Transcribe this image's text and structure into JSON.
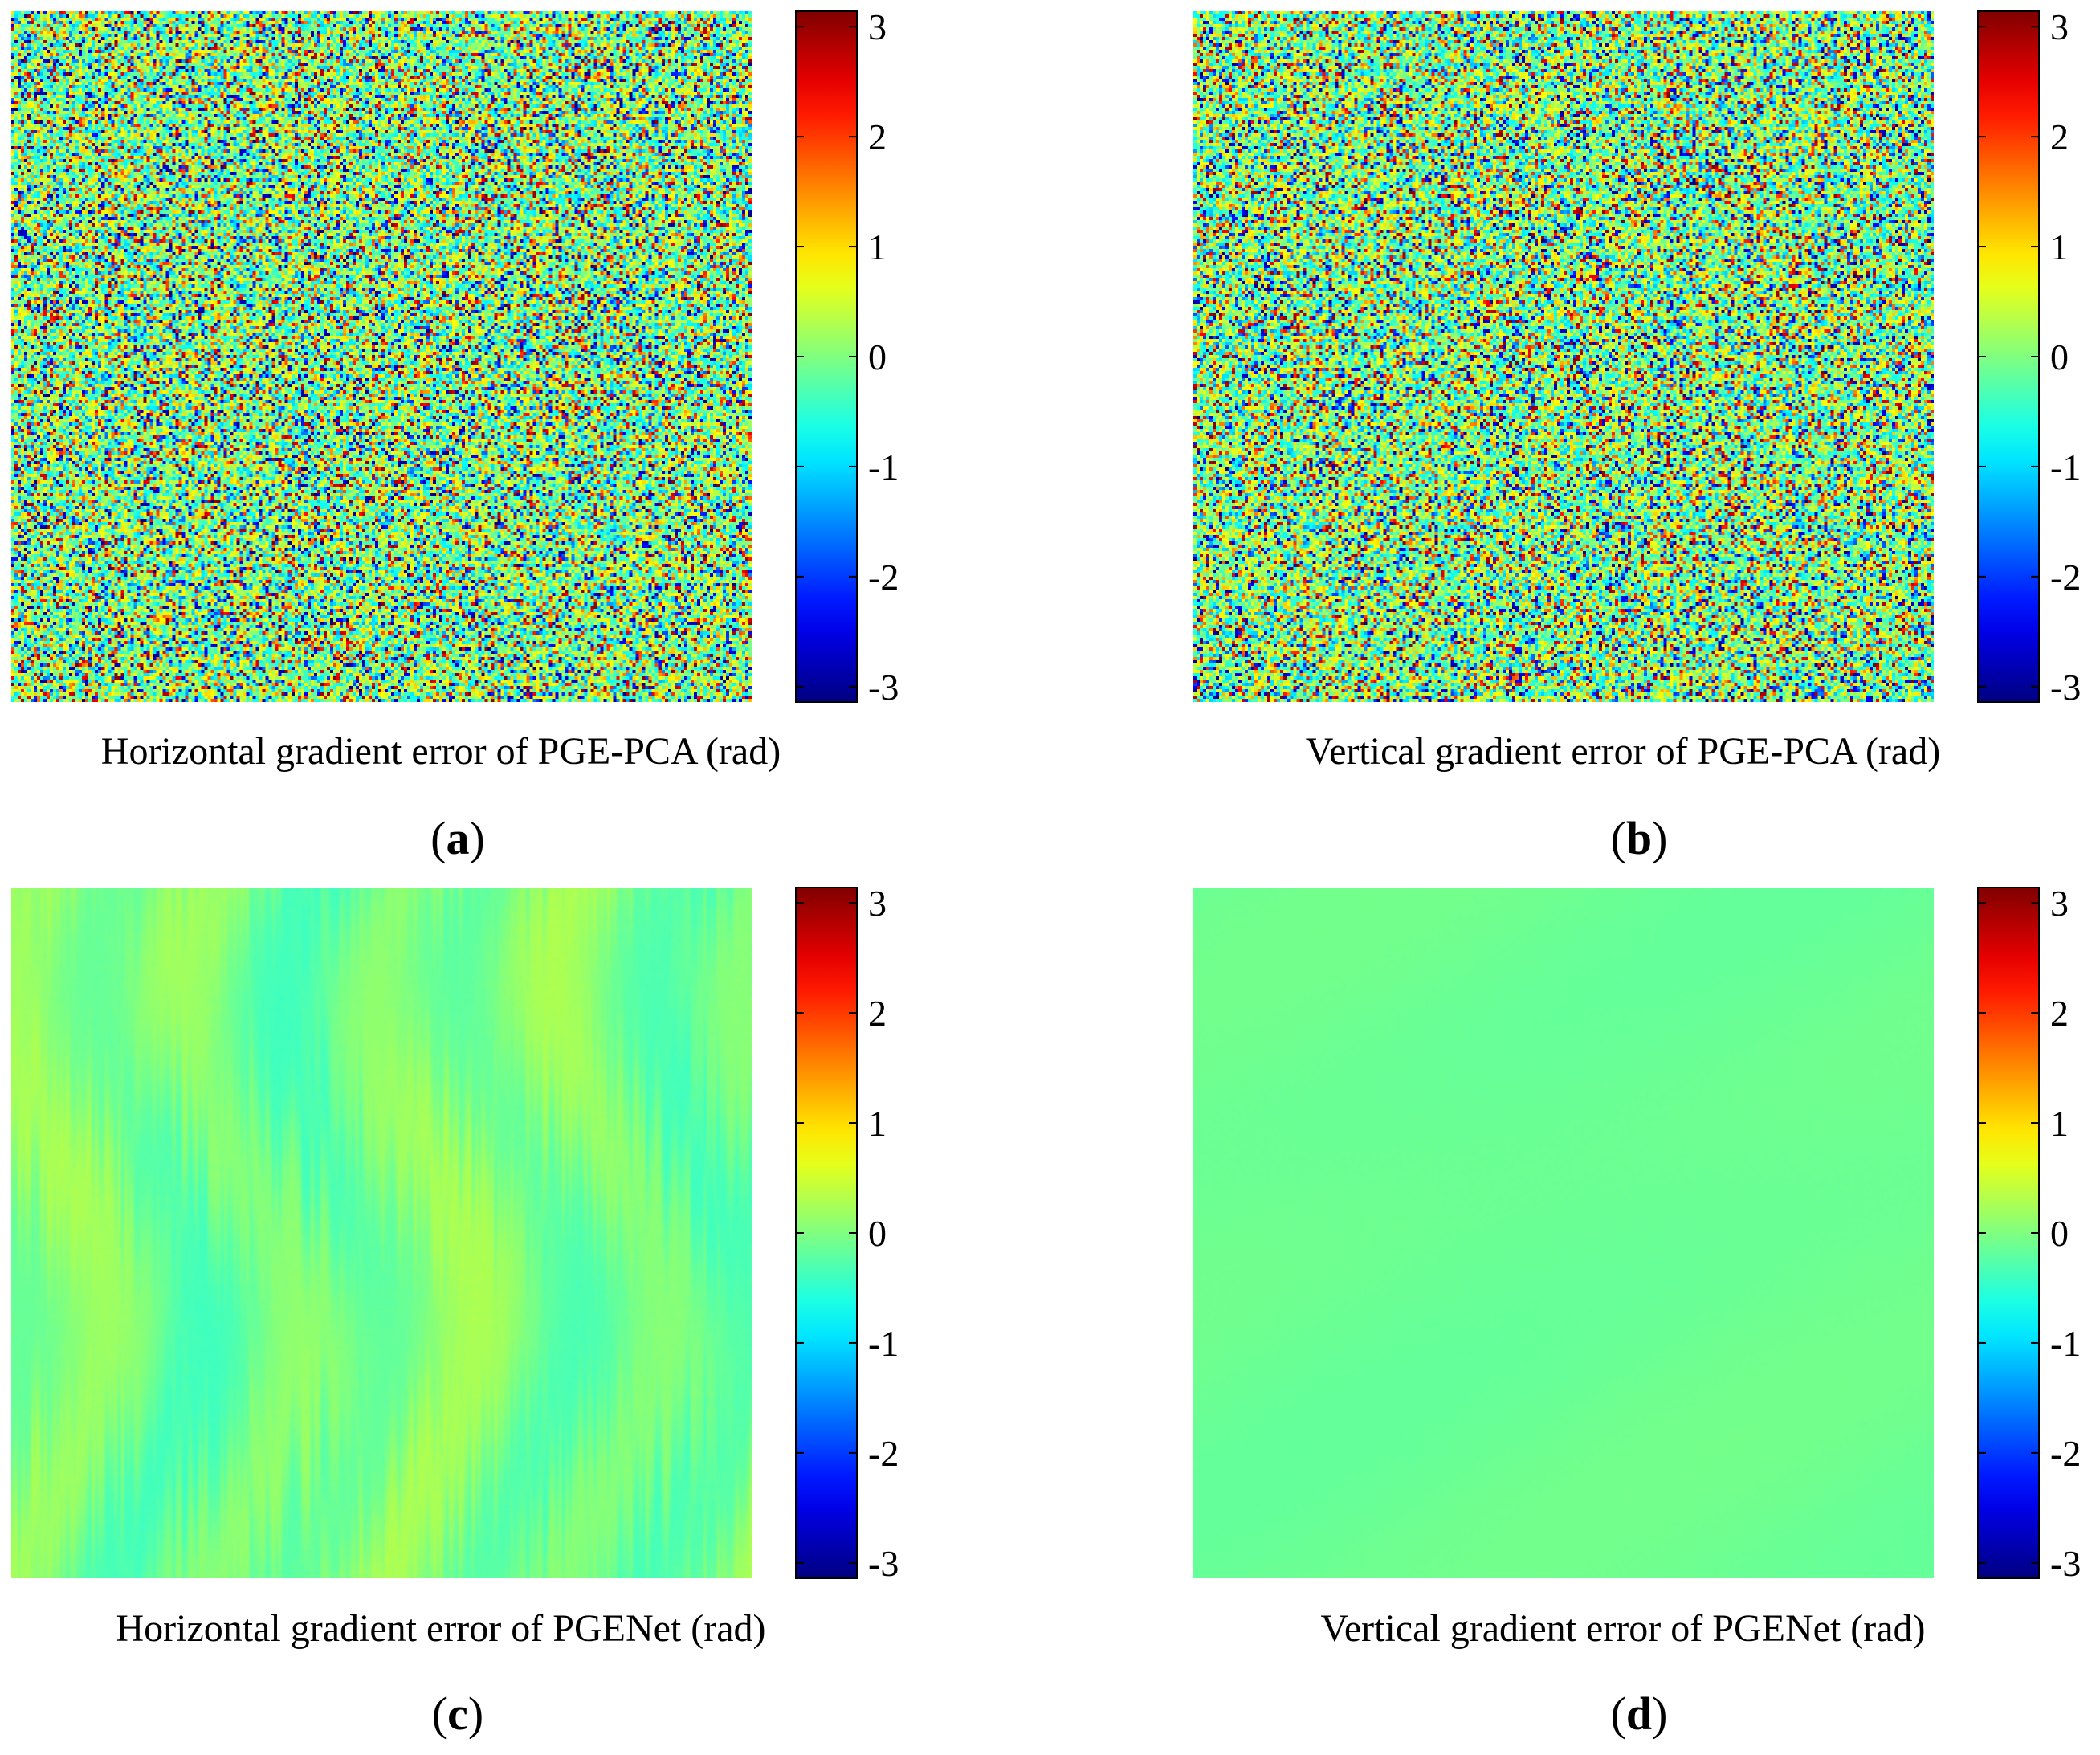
{
  "chart_data": [
    {
      "type": "heatmap",
      "panel": "a",
      "title": "Horizontal gradient error of PGE-PCA (rad)",
      "pattern": "noise",
      "value_range": [
        -3.14,
        3.14
      ],
      "colormap": "jet",
      "colorbar_ticks": [
        "3",
        "2",
        "1",
        "0",
        "-1",
        "-2",
        "-3"
      ],
      "colorbar_tick_values": [
        3,
        2,
        1,
        0,
        -1,
        -2,
        -3
      ]
    },
    {
      "type": "heatmap",
      "panel": "b",
      "title": "Vertical gradient error of PGE-PCA (rad)",
      "pattern": "noise",
      "value_range": [
        -3.14,
        3.14
      ],
      "colormap": "jet",
      "colorbar_ticks": [
        "3",
        "2",
        "1",
        "0",
        "-1",
        "-2",
        "-3"
      ],
      "colorbar_tick_values": [
        3,
        2,
        1,
        0,
        -1,
        -2,
        -3
      ]
    },
    {
      "type": "heatmap",
      "panel": "c",
      "title": "Horizontal gradient error of PGENet (rad)",
      "pattern": "vertical-streaks",
      "value_range": [
        -3.14,
        3.14
      ],
      "colormap": "jet",
      "colorbar_ticks": [
        "3",
        "2",
        "1",
        "0",
        "-1",
        "-2",
        "-3"
      ],
      "colorbar_tick_values": [
        3,
        2,
        1,
        0,
        -1,
        -2,
        -3
      ]
    },
    {
      "type": "heatmap",
      "panel": "d",
      "title": "Vertical gradient error of PGENet (rad)",
      "pattern": "smooth-near-zero",
      "value_range": [
        -3.14,
        3.14
      ],
      "colormap": "jet",
      "colorbar_ticks": [
        "3",
        "2",
        "1",
        "0",
        "-1",
        "-2",
        "-3"
      ],
      "colorbar_tick_values": [
        3,
        2,
        1,
        0,
        -1,
        -2,
        -3
      ]
    }
  ],
  "labels": {
    "a_open": "(",
    "a_letter": "a",
    "a_close": ")",
    "b_open": "(",
    "b_letter": "b",
    "b_close": ")",
    "c_open": "(",
    "c_letter": "c",
    "c_close": ")",
    "d_open": "(",
    "d_letter": "d",
    "d_close": ")"
  }
}
